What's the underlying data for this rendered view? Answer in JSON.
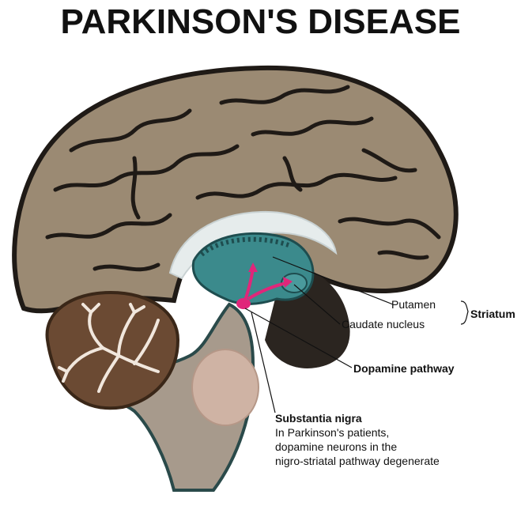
{
  "title": "PARKINSON'S DISEASE",
  "labels": {
    "putamen": "Putamen",
    "caudate": "Caudate nucleus",
    "striatum": "Striatum",
    "dopamine_pathway": "Dopamine pathway",
    "substantia_nigra": "Substantia nigra",
    "description_line1": "In Parkinson's patients,",
    "description_line2": "dopamine neurons in the",
    "description_line3": "nigro-striatal pathway degenerate"
  },
  "colors": {
    "cortex": "#9b8a73",
    "sulci": "#1f1a16",
    "striatum": "#3b8a8c",
    "cerebellum": "#6b4a33",
    "brainstem": "#a79a8c",
    "pathway": "#e0267a"
  }
}
